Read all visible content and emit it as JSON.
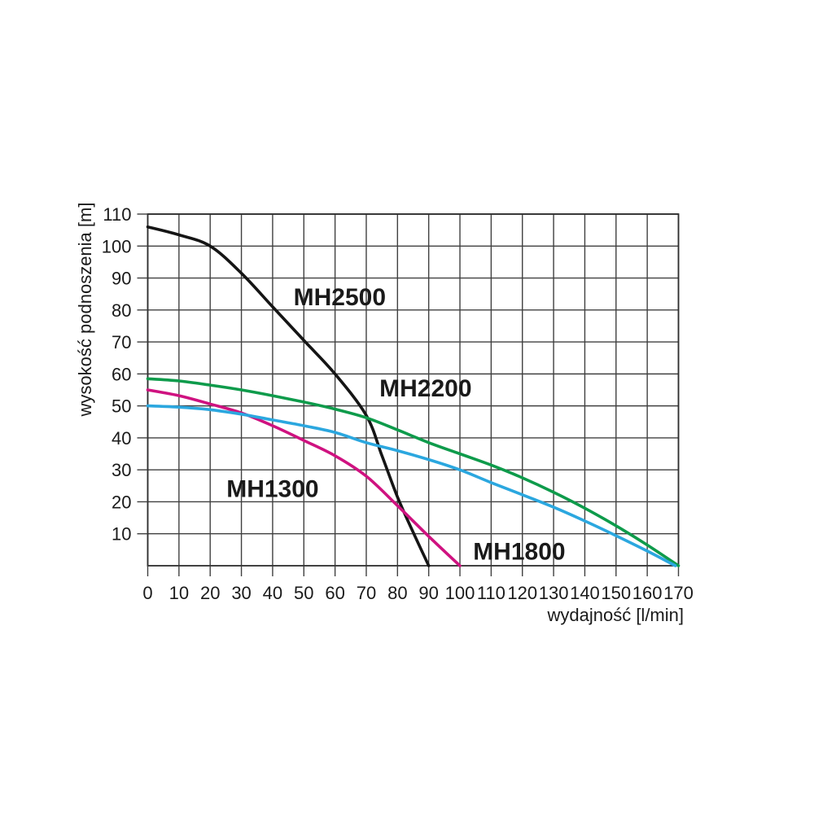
{
  "page": {
    "background": "#ffffff"
  },
  "chart_data": {
    "type": "line",
    "title": "",
    "xlabel": "wydajność [l/min]",
    "ylabel": "wysokość podnoszenia [m]",
    "xlim": [
      0,
      170
    ],
    "ylim": [
      0,
      110
    ],
    "x_ticks": [
      0,
      10,
      20,
      30,
      40,
      50,
      60,
      70,
      80,
      90,
      100,
      110,
      120,
      130,
      140,
      150,
      160,
      170
    ],
    "y_ticks": [
      10,
      20,
      30,
      40,
      50,
      60,
      70,
      80,
      90,
      100,
      110
    ],
    "grid": true,
    "grid_color": "#404040",
    "legend": "inline-curve-labels",
    "series": [
      {
        "name": "MH2500",
        "color": "#151515",
        "x": [
          0,
          10,
          20,
          30,
          40,
          50,
          60,
          70,
          75,
          80,
          85,
          90
        ],
        "y": [
          106,
          103.5,
          100,
          91.5,
          81,
          70.5,
          60,
          47,
          34.5,
          21.5,
          10.5,
          0
        ],
        "label_pos": {
          "x": 61.5,
          "y": 84
        }
      },
      {
        "name": "MH2200",
        "color": "#0e9b4b",
        "x": [
          0,
          10,
          20,
          30,
          40,
          50,
          60,
          70,
          80,
          90,
          100,
          110,
          120,
          130,
          140,
          150,
          160,
          170
        ],
        "y": [
          58.5,
          57.8,
          56.5,
          55,
          53.2,
          51.2,
          49,
          46.3,
          42.5,
          38.5,
          35,
          31.5,
          27.5,
          23,
          18,
          12.5,
          6.5,
          0
        ],
        "label_pos": {
          "x": 89,
          "y": 55.5
        }
      },
      {
        "name": "MH1300",
        "color": "#cf1280",
        "x": [
          0,
          10,
          20,
          30,
          40,
          50,
          60,
          70,
          80,
          90,
          100
        ],
        "y": [
          55,
          53.2,
          50.6,
          47.8,
          43.8,
          39.2,
          34.4,
          28,
          18.8,
          9.2,
          0
        ],
        "label_pos": {
          "x": 40,
          "y": 24
        }
      },
      {
        "name": "MH1800",
        "color": "#2ba7df",
        "x": [
          0,
          10,
          20,
          30,
          40,
          50,
          60,
          70,
          80,
          90,
          100,
          110,
          120,
          130,
          140,
          150,
          160,
          169
        ],
        "y": [
          50,
          49.6,
          48.8,
          47.4,
          45.6,
          43.8,
          41.7,
          38.5,
          36,
          33.2,
          30,
          26,
          22.2,
          18.3,
          14,
          9.4,
          4.6,
          0
        ],
        "label_pos": {
          "x": 119,
          "y": 4.5
        }
      }
    ]
  }
}
